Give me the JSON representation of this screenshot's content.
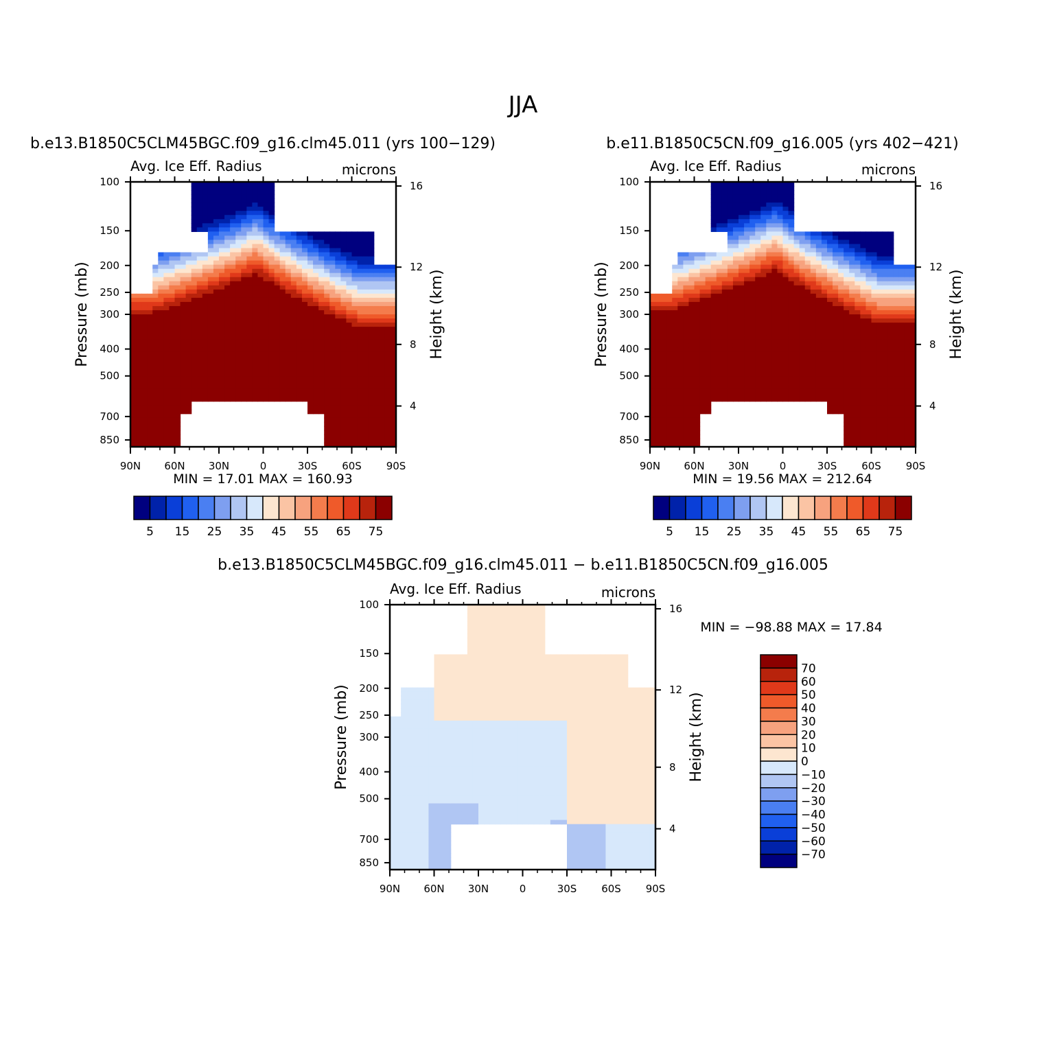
{
  "figure": {
    "title": "JJA"
  },
  "chart_data": [
    {
      "type": "heatmap",
      "title": "b.e13.B1850C5CLM45BGC.f09_g16.clm45.011 (yrs 100−129)",
      "left_string": "Avg. Ice Eff. Radius",
      "right_string": "microns",
      "xlabel": "",
      "ylabel": "Pressure (mb)",
      "ylabel_right": "Height (km)",
      "x_ticks": [
        "90N",
        "60N",
        "30N",
        "0",
        "30S",
        "60S",
        "90S"
      ],
      "y_ticks": [
        "100",
        "150",
        "200",
        "250",
        "300",
        "400",
        "500",
        "700",
        "850"
      ],
      "y2_ticks": [
        "16",
        "12",
        "8",
        "4"
      ],
      "xlim": [
        90,
        -90
      ],
      "ylim": [
        900,
        100
      ],
      "stats": "MIN =   17.01   MAX = 160.93",
      "colorbar": {
        "orientation": "horizontal",
        "levels": [
          5,
          10,
          15,
          20,
          25,
          30,
          35,
          40,
          45,
          50,
          55,
          60,
          65,
          70,
          75
        ],
        "tick_labels": [
          "5",
          "15",
          "25",
          "35",
          "45",
          "55",
          "65",
          "75"
        ]
      },
      "palette": "blue-white-red",
      "min": 17.01,
      "max": 160.93
    },
    {
      "type": "heatmap",
      "title": "b.e11.B1850C5CN.f09_g16.005 (yrs 402−421)",
      "left_string": "Avg. Ice Eff. Radius",
      "right_string": "microns",
      "xlabel": "",
      "ylabel": "Pressure (mb)",
      "ylabel_right": "Height (km)",
      "x_ticks": [
        "90N",
        "60N",
        "30N",
        "0",
        "30S",
        "60S",
        "90S"
      ],
      "y_ticks": [
        "100",
        "150",
        "200",
        "250",
        "300",
        "400",
        "500",
        "700",
        "850"
      ],
      "y2_ticks": [
        "16",
        "12",
        "8",
        "4"
      ],
      "xlim": [
        90,
        -90
      ],
      "ylim": [
        900,
        100
      ],
      "stats": "MIN =   19.56   MAX = 212.64",
      "colorbar": {
        "orientation": "horizontal",
        "levels": [
          5,
          10,
          15,
          20,
          25,
          30,
          35,
          40,
          45,
          50,
          55,
          60,
          65,
          70,
          75
        ],
        "tick_labels": [
          "5",
          "15",
          "25",
          "35",
          "45",
          "55",
          "65",
          "75"
        ]
      },
      "palette": "blue-white-red",
      "min": 19.56,
      "max": 212.64
    },
    {
      "type": "heatmap",
      "title": "b.e13.B1850C5CLM45BGC.f09_g16.clm45.011 − b.e11.B1850C5CN.f09_g16.005",
      "left_string": "Avg. Ice Eff. Radius",
      "right_string": "microns",
      "xlabel": "",
      "ylabel": "Pressure (mb)",
      "ylabel_right": "Height (km)",
      "x_ticks": [
        "90N",
        "60N",
        "30N",
        "0",
        "30S",
        "60S",
        "90S"
      ],
      "y_ticks": [
        "100",
        "150",
        "200",
        "250",
        "300",
        "400",
        "500",
        "700",
        "850"
      ],
      "y2_ticks": [
        "16",
        "12",
        "8",
        "4"
      ],
      "xlim": [
        90,
        -90
      ],
      "ylim": [
        900,
        100
      ],
      "stats": "MIN = −98.88   MAX =   17.84",
      "colorbar": {
        "orientation": "vertical",
        "levels": [
          70,
          60,
          50,
          40,
          30,
          20,
          10,
          0,
          -10,
          -20,
          -30,
          -40,
          -50,
          -60,
          -70
        ],
        "tick_labels": [
          "70",
          "60",
          "50",
          "40",
          "30",
          "20",
          "10",
          "0",
          "−10",
          "−20",
          "−30",
          "−40",
          "−50",
          "−60",
          "−70"
        ]
      },
      "palette": "blue-white-red",
      "min": -98.88,
      "max": 17.84
    }
  ],
  "colors": {
    "palette": [
      "#00007f",
      "#0022aa",
      "#0a3fd8",
      "#2060f0",
      "#4a7ff2",
      "#7e9ff0",
      "#b0c6f3",
      "#d7e8fb",
      "#fde6d0",
      "#fbc4a4",
      "#f7a27e",
      "#f47c4c",
      "#ef5a2a",
      "#e0391a",
      "#b8230c",
      "#8b0000"
    ]
  }
}
